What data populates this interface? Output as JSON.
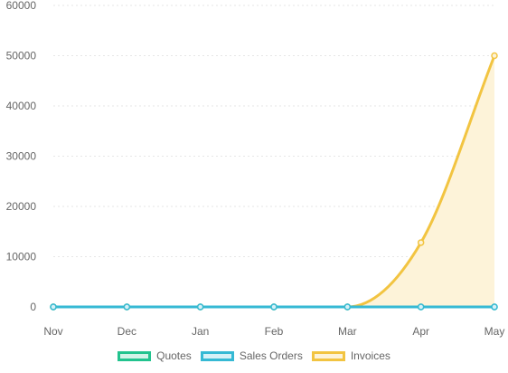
{
  "chart_data": {
    "type": "line",
    "categories": [
      "Nov",
      "Dec",
      "Jan",
      "Feb",
      "Mar",
      "Apr",
      "May"
    ],
    "series": [
      {
        "name": "Quotes",
        "values": [
          0,
          0,
          0,
          0,
          0,
          0,
          0
        ],
        "color": "#22c38e",
        "fill": "#d3f3e8",
        "filled": false
      },
      {
        "name": "Sales Orders",
        "values": [
          0,
          0,
          0,
          0,
          0,
          0,
          0
        ],
        "color": "#36b9d4",
        "fill": "#d7f1f7",
        "filled": false
      },
      {
        "name": "Invoices",
        "values": [
          0,
          0,
          0,
          0,
          0,
          12800,
          50000
        ],
        "color": "#f2c441",
        "fill": "#fdf3d9",
        "filled": true
      }
    ],
    "yticks": [
      "0",
      "10000",
      "20000",
      "30000",
      "40000",
      "50000",
      "60000"
    ],
    "ylim": [
      0,
      60000
    ],
    "title": "",
    "xlabel": "",
    "ylabel": "",
    "grid": true,
    "legend_position": "bottom"
  }
}
